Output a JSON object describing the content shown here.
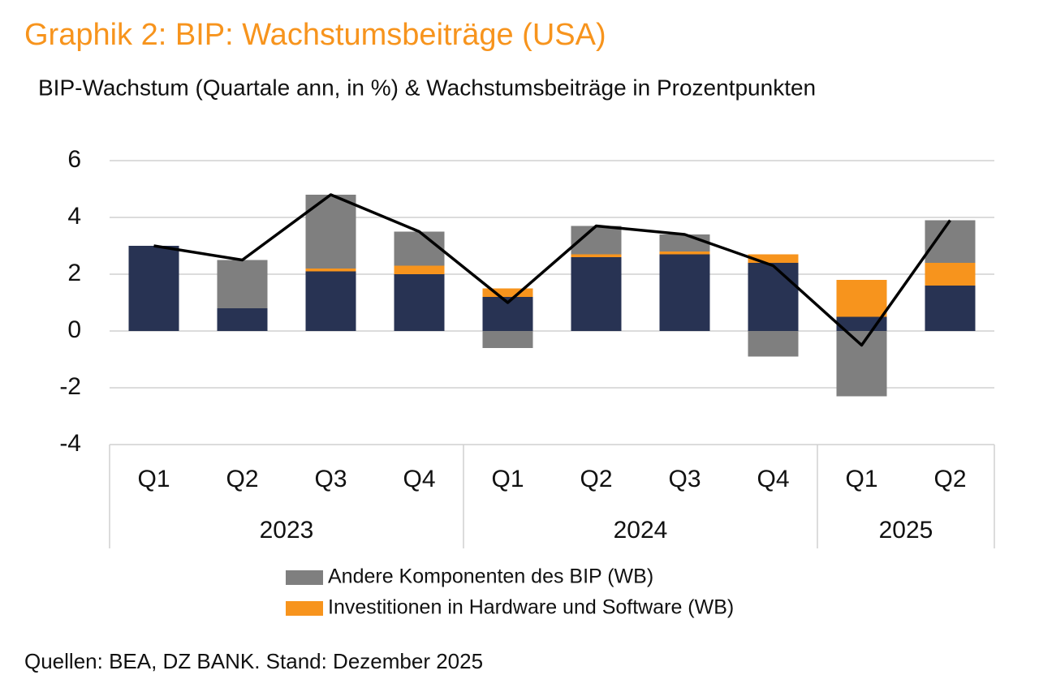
{
  "chart_data": {
    "type": "stacked-bar-line",
    "title": "Graphik 2: BIP: Wachstumsbeiträge (USA)",
    "subtitle": "BIP-Wachstum (Quartale ann, in %) & Wachstumsbeiträge in Prozentpunkten",
    "source": "Quellen: BEA, DZ BANK. Stand: Dezember 2025",
    "categories": [
      "Q1",
      "Q2",
      "Q3",
      "Q4",
      "Q1",
      "Q2",
      "Q3",
      "Q4",
      "Q1",
      "Q2"
    ],
    "groups": [
      {
        "label": "2023",
        "size": 4
      },
      {
        "label": "2024",
        "size": 4
      },
      {
        "label": "2025",
        "size": 2
      }
    ],
    "series": [
      {
        "color": "#283353",
        "values": [
          3.0,
          0.8,
          2.1,
          2.0,
          1.2,
          2.6,
          2.7,
          2.4,
          0.5,
          1.6
        ]
      },
      {
        "name": "Investitionen in Hardware und Software (WB)",
        "color": "#f7941d",
        "values": [
          0,
          0,
          0.1,
          0.3,
          0.3,
          0.1,
          0.1,
          0.3,
          1.3,
          0.8
        ]
      },
      {
        "name": "Andere Komponenten des BIP (WB)",
        "color": "#7f7f7f",
        "values": [
          0,
          1.7,
          2.6,
          1.2,
          -0.6,
          1.0,
          0.6,
          -0.9,
          -2.3,
          1.5
        ]
      },
      {
        "type": "line",
        "color": "#000000",
        "values": [
          3.0,
          2.5,
          4.8,
          3.5,
          1.0,
          3.7,
          3.4,
          2.3,
          -0.5,
          3.9
        ]
      }
    ],
    "legend_order": [
      2,
      1
    ],
    "ylim": [
      -4,
      6
    ],
    "yticks": [
      -4,
      -2,
      0,
      2,
      4,
      6
    ],
    "grid": true
  }
}
